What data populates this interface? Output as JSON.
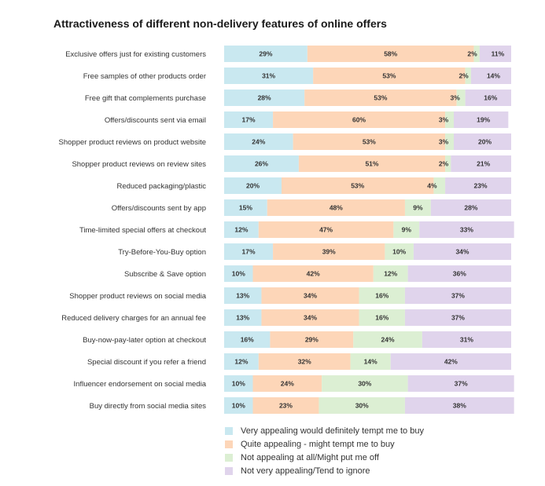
{
  "chart_data": {
    "type": "bar",
    "orientation": "horizontal-stacked-100",
    "title": "Attractiveness of different non-delivery features of online offers",
    "categories": [
      "Exclusive offers just for existing customers",
      "Free samples of other products order",
      "Free gift that complements purchase",
      "Offers/discounts sent via email",
      "Shopper product reviews on product website",
      "Shopper product reviews on review sites",
      "Reduced packaging/plastic",
      "Offers/discounts sent by app",
      "Time-limited special offers at checkout",
      "Try-Before-You-Buy option",
      "Subscribe & Save option",
      "Shopper product reviews on social media",
      "Reduced delivery charges for an annual fee",
      "Buy-now-pay-later option at checkout",
      "Special discount if you refer a friend",
      "Influencer endorsement on social media",
      "Buy directly from social media sites"
    ],
    "series": [
      {
        "name": "Very appealing would definitely tempt me to buy",
        "color": "#c9e8f0",
        "values": [
          29,
          31,
          28,
          17,
          24,
          26,
          20,
          15,
          12,
          17,
          10,
          13,
          13,
          16,
          12,
          10,
          10
        ]
      },
      {
        "name": "Quite appealing - might tempt me to buy",
        "color": "#fdd6b8",
        "values": [
          58,
          53,
          53,
          60,
          53,
          51,
          53,
          48,
          47,
          39,
          42,
          34,
          34,
          29,
          32,
          24,
          23
        ]
      },
      {
        "name": "Not appealing at all/Might put me off",
        "color": "#dcefd3",
        "values": [
          2,
          2,
          3,
          3,
          3,
          2,
          4,
          9,
          9,
          10,
          12,
          16,
          16,
          24,
          14,
          30,
          30
        ]
      },
      {
        "name": "Not very appealing/Tend to ignore",
        "color": "#e0d4ec",
        "values": [
          11,
          14,
          16,
          19,
          20,
          21,
          23,
          28,
          33,
          34,
          36,
          37,
          37,
          31,
          42,
          37,
          38
        ]
      }
    ],
    "value_suffix": "%",
    "legend_position": "bottom"
  }
}
